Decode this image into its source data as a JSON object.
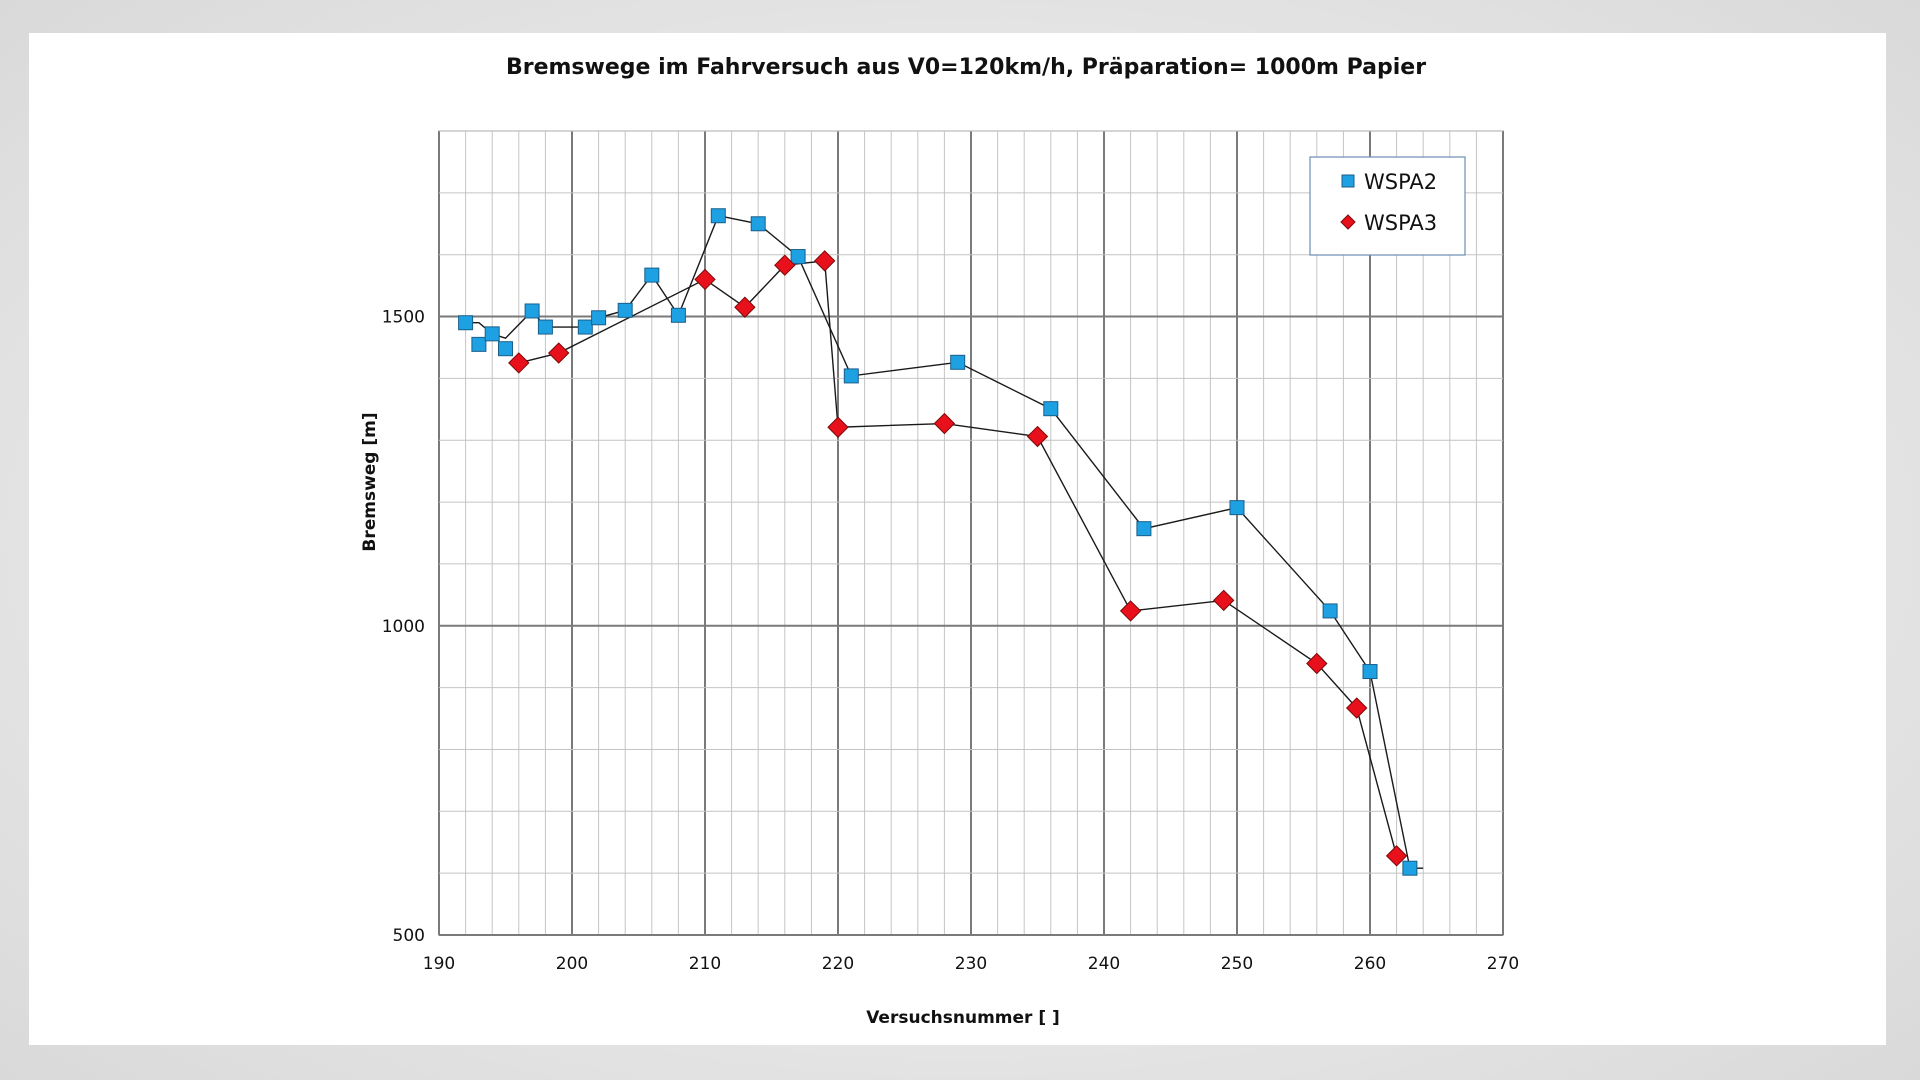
{
  "chart_data": {
    "type": "scatter",
    "title": "Bremswege im Fahrversuch  aus  V0=120km/h,  Präparation=  1000m Papier",
    "xlabel": "Versuchsnummer [ ]",
    "ylabel": "Bremsweg [m]",
    "xlim": [
      190,
      270
    ],
    "ylim": [
      500,
      1800
    ],
    "x_major_ticks": [
      190,
      200,
      210,
      220,
      230,
      240,
      250,
      260,
      270
    ],
    "y_major_ticks": [
      500,
      1000,
      1500
    ],
    "grid": true,
    "legend_position": "top-right",
    "series": [
      {
        "name": "WSPA2",
        "marker": "square",
        "color": "#1ea1e3",
        "x": [
          192,
          193,
          194,
          195,
          197,
          198,
          201,
          202,
          204,
          206,
          208,
          211,
          214,
          217,
          221,
          229,
          236,
          243,
          250,
          257,
          260,
          263
        ],
        "y": [
          1490,
          1455,
          1472,
          1448,
          1509,
          1483,
          1483,
          1498,
          1510,
          1567,
          1502,
          1663,
          1650,
          1597,
          1404,
          1426,
          1351,
          1157,
          1191,
          1024,
          926,
          608
        ],
        "line_x": [
          192,
          193,
          194,
          195,
          197,
          198,
          201,
          202,
          204,
          206,
          208,
          211,
          214,
          217,
          221,
          229,
          236,
          243,
          250,
          257,
          260,
          263,
          264
        ],
        "line_y": [
          1490,
          1490,
          1472,
          1465,
          1509,
          1483,
          1483,
          1498,
          1510,
          1567,
          1502,
          1663,
          1650,
          1597,
          1404,
          1426,
          1351,
          1157,
          1191,
          1024,
          926,
          608,
          608
        ]
      },
      {
        "name": "WSPA3",
        "marker": "diamond",
        "color": "#e8101a",
        "x": [
          196,
          199,
          210,
          213,
          216,
          219,
          220,
          228,
          235,
          242,
          249,
          256,
          259,
          262
        ],
        "y": [
          1425,
          1441,
          1560,
          1515,
          1583,
          1590,
          1321,
          1327,
          1306,
          1024,
          1041,
          939,
          867,
          628
        ],
        "line_x": [
          196,
          199,
          210,
          213,
          216,
          219,
          220,
          228,
          235,
          242,
          249,
          256,
          259,
          262
        ],
        "line_y": [
          1425,
          1441,
          1560,
          1515,
          1583,
          1590,
          1321,
          1327,
          1306,
          1024,
          1041,
          939,
          867,
          628
        ]
      }
    ]
  }
}
